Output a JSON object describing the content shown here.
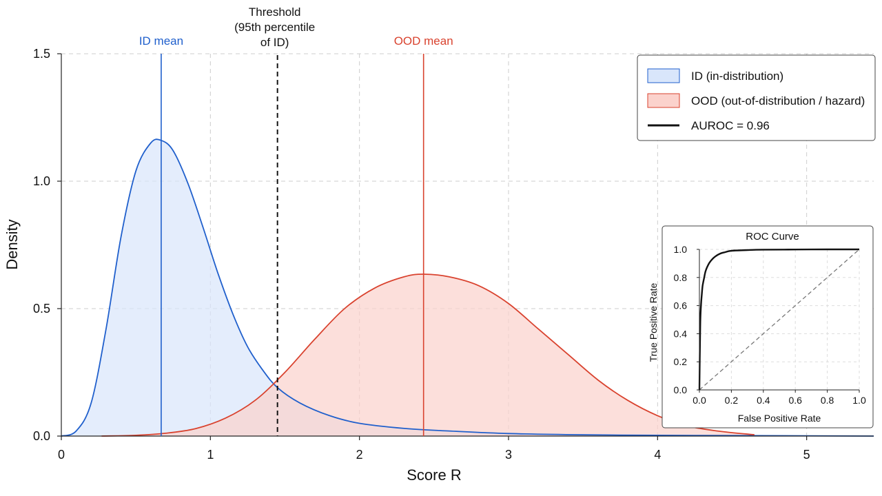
{
  "colors": {
    "id_line": "#1f5fcc",
    "id_fill": "#d9e6fb",
    "ood_line": "#d9422e",
    "ood_fill": "#fbd2cc",
    "threshold": "#111111",
    "grid": "#cccccc"
  },
  "chart_data": [
    {
      "type": "area",
      "title": "",
      "xlabel": "Score R",
      "ylabel": "Density",
      "xlim": [
        0,
        5.45
      ],
      "ylim": [
        0,
        1.5
      ],
      "xticks": [
        0,
        1,
        2,
        3,
        4,
        5
      ],
      "xtick_labels": [
        "0",
        "1",
        "2",
        "3",
        "4",
        "5"
      ],
      "yticks": [
        0,
        0.5,
        1.0,
        1.5
      ],
      "ytick_labels": [
        "0.0",
        "0.5",
        "1.0",
        "1.5"
      ],
      "grid": true,
      "legend_position": "top-right",
      "series": [
        {
          "name": "ID (in-distribution)",
          "x": [
            0,
            0.1,
            0.2,
            0.3,
            0.4,
            0.5,
            0.6,
            0.67,
            0.75,
            0.85,
            0.95,
            1.05,
            1.15,
            1.25,
            1.35,
            1.45,
            1.6,
            1.8,
            2.0,
            2.3,
            2.6,
            3.0,
            3.5,
            4.0,
            4.5,
            5.0,
            5.45
          ],
          "y": [
            0.0,
            0.02,
            0.13,
            0.42,
            0.78,
            1.04,
            1.15,
            1.16,
            1.12,
            0.99,
            0.82,
            0.64,
            0.48,
            0.35,
            0.26,
            0.19,
            0.13,
            0.08,
            0.05,
            0.03,
            0.02,
            0.01,
            0.005,
            0.003,
            0.002,
            0.001,
            0.0
          ]
        },
        {
          "name": "OOD (out-of-distribution / hazard)",
          "x": [
            0.27,
            0.5,
            0.7,
            0.9,
            1.1,
            1.3,
            1.5,
            1.7,
            1.9,
            2.1,
            2.3,
            2.43,
            2.6,
            2.8,
            3.0,
            3.2,
            3.4,
            3.6,
            3.8,
            4.0,
            4.2,
            4.4,
            4.65
          ],
          "y": [
            0.0,
            0.003,
            0.011,
            0.029,
            0.07,
            0.14,
            0.25,
            0.38,
            0.5,
            0.58,
            0.625,
            0.635,
            0.625,
            0.59,
            0.52,
            0.42,
            0.32,
            0.22,
            0.14,
            0.08,
            0.04,
            0.02,
            0.005
          ]
        }
      ],
      "annotations": {
        "id_mean": {
          "label": "ID mean",
          "x": 0.67
        },
        "ood_mean": {
          "label": "OOD mean",
          "x": 2.43
        },
        "threshold": {
          "label_lines": [
            "Threshold",
            "(95th percentile",
            "of ID)"
          ],
          "x": 1.45
        }
      },
      "legend": [
        {
          "label": "ID (in-distribution)",
          "kind": "patch-id"
        },
        {
          "label": "OOD (out-of-distribution / hazard)",
          "kind": "patch-ood"
        },
        {
          "label": "AUROC = 0.96",
          "kind": "line"
        }
      ]
    },
    {
      "type": "line",
      "title": "ROC Curve",
      "xlabel": "False Positive Rate",
      "ylabel": "True Positive Rate",
      "xlim": [
        0,
        1
      ],
      "ylim": [
        0,
        1
      ],
      "xticks": [
        0,
        0.2,
        0.4,
        0.6,
        0.8,
        1.0
      ],
      "xtick_labels": [
        "0.0",
        "0.2",
        "0.4",
        "0.6",
        "0.8",
        "1.0"
      ],
      "yticks": [
        0,
        0.2,
        0.4,
        0.6,
        0.8,
        1.0
      ],
      "ytick_labels": [
        "0.0",
        "0.2",
        "0.4",
        "0.6",
        "0.8",
        "1.0"
      ],
      "grid": true,
      "series": [
        {
          "x": [
            0.0,
            0.005,
            0.01,
            0.015,
            0.02,
            0.03,
            0.04,
            0.06,
            0.08,
            0.1,
            0.13,
            0.16,
            0.2,
            0.3,
            0.4,
            0.6,
            0.8,
            1.0
          ],
          "y": [
            0.0,
            0.45,
            0.6,
            0.68,
            0.74,
            0.8,
            0.85,
            0.9,
            0.93,
            0.95,
            0.97,
            0.98,
            0.99,
            0.995,
            0.998,
            0.999,
            1.0,
            1.0
          ]
        },
        {
          "x": [
            0,
            1
          ],
          "y": [
            0,
            1
          ]
        }
      ]
    }
  ]
}
